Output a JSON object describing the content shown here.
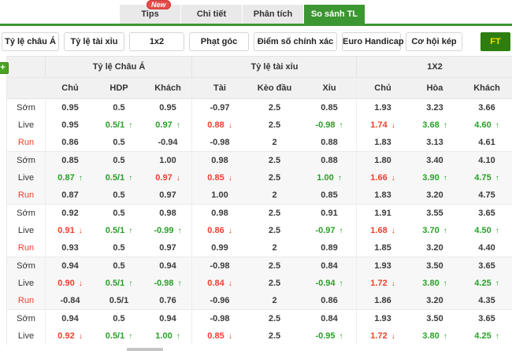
{
  "tabs": [
    {
      "label": "Tips",
      "badge": "New",
      "active": false
    },
    {
      "label": "Chi tiết",
      "active": false
    },
    {
      "label": "Phân tích",
      "active": false
    },
    {
      "label": "So sánh TL",
      "active": true
    }
  ],
  "filters": {
    "buttons": [
      "Tỷ lệ châu Á",
      "Tỷ lệ tài xỉu",
      "1x2",
      "Phạt góc",
      "Điểm số chính xác",
      "Euro Handicap",
      "Cơ hội kép"
    ],
    "ft_label": "FT"
  },
  "table": {
    "groups": [
      {
        "title": "Tỷ lệ Châu Á",
        "columns": [
          "Chủ",
          "HDP",
          "Khách"
        ]
      },
      {
        "title": "Tỷ lệ tài xỉu",
        "columns": [
          "Tài",
          "Kèo đầu",
          "Xỉu"
        ]
      },
      {
        "title": "1X2",
        "columns": [
          "Chủ",
          "Hòa",
          "Khách"
        ]
      }
    ],
    "rows": [
      {
        "label": "Sớm",
        "cells": [
          {
            "v": "0.95"
          },
          {
            "v": "0.5"
          },
          {
            "v": "0.95"
          },
          {
            "v": "-0.97"
          },
          {
            "v": "2.5"
          },
          {
            "v": "0.85"
          },
          {
            "v": "1.93"
          },
          {
            "v": "3.23"
          },
          {
            "v": "3.66"
          }
        ]
      },
      {
        "label": "Live",
        "cells": [
          {
            "v": "0.95"
          },
          {
            "v": "0.5/1",
            "dir": "up"
          },
          {
            "v": "0.97",
            "dir": "up"
          },
          {
            "v": "0.88",
            "dir": "down"
          },
          {
            "v": "2.5"
          },
          {
            "v": "-0.98",
            "dir": "up"
          },
          {
            "v": "1.74",
            "dir": "down"
          },
          {
            "v": "3.68",
            "dir": "up"
          },
          {
            "v": "4.60",
            "dir": "up"
          }
        ]
      },
      {
        "label": "Run",
        "cells": [
          {
            "v": "0.86"
          },
          {
            "v": "0.5"
          },
          {
            "v": "-0.94"
          },
          {
            "v": "-0.98"
          },
          {
            "v": "2"
          },
          {
            "v": "0.88"
          },
          {
            "v": "1.83"
          },
          {
            "v": "3.13"
          },
          {
            "v": "4.61"
          }
        ]
      },
      {
        "label": "Sớm",
        "cells": [
          {
            "v": "0.85"
          },
          {
            "v": "0.5"
          },
          {
            "v": "1.00"
          },
          {
            "v": "0.98"
          },
          {
            "v": "2.5"
          },
          {
            "v": "0.88"
          },
          {
            "v": "1.80"
          },
          {
            "v": "3.40"
          },
          {
            "v": "4.10"
          }
        ]
      },
      {
        "label": "Live",
        "cells": [
          {
            "v": "0.87",
            "dir": "up"
          },
          {
            "v": "0.5/1",
            "dir": "up"
          },
          {
            "v": "0.97",
            "dir": "down"
          },
          {
            "v": "0.85",
            "dir": "down"
          },
          {
            "v": "2.5"
          },
          {
            "v": "1.00",
            "dir": "up"
          },
          {
            "v": "1.66",
            "dir": "down"
          },
          {
            "v": "3.90",
            "dir": "up"
          },
          {
            "v": "4.75",
            "dir": "up"
          }
        ]
      },
      {
        "label": "Run",
        "cells": [
          {
            "v": "0.87"
          },
          {
            "v": "0.5"
          },
          {
            "v": "0.97"
          },
          {
            "v": "1.00"
          },
          {
            "v": "2"
          },
          {
            "v": "0.85"
          },
          {
            "v": "1.83"
          },
          {
            "v": "3.20"
          },
          {
            "v": "4.75"
          }
        ]
      },
      {
        "label": "Sớm",
        "cells": [
          {
            "v": "0.92"
          },
          {
            "v": "0.5"
          },
          {
            "v": "0.98"
          },
          {
            "v": "0.98"
          },
          {
            "v": "2.5"
          },
          {
            "v": "0.91"
          },
          {
            "v": "1.91"
          },
          {
            "v": "3.55"
          },
          {
            "v": "3.65"
          }
        ]
      },
      {
        "label": "Live",
        "cells": [
          {
            "v": "0.91",
            "dir": "down"
          },
          {
            "v": "0.5/1",
            "dir": "up"
          },
          {
            "v": "-0.99",
            "dir": "up"
          },
          {
            "v": "0.86",
            "dir": "down"
          },
          {
            "v": "2.5"
          },
          {
            "v": "-0.97",
            "dir": "up"
          },
          {
            "v": "1.68",
            "dir": "down"
          },
          {
            "v": "3.70",
            "dir": "up"
          },
          {
            "v": "4.50",
            "dir": "up"
          }
        ]
      },
      {
        "label": "Run",
        "cells": [
          {
            "v": "0.93"
          },
          {
            "v": "0.5"
          },
          {
            "v": "0.97"
          },
          {
            "v": "0.99"
          },
          {
            "v": "2"
          },
          {
            "v": "0.89"
          },
          {
            "v": "1.85"
          },
          {
            "v": "3.20"
          },
          {
            "v": "4.40"
          }
        ]
      },
      {
        "label": "Sớm",
        "cells": [
          {
            "v": "0.94"
          },
          {
            "v": "0.5"
          },
          {
            "v": "0.94"
          },
          {
            "v": "-0.98"
          },
          {
            "v": "2.5"
          },
          {
            "v": "0.84"
          },
          {
            "v": "1.93"
          },
          {
            "v": "3.50"
          },
          {
            "v": "3.65"
          }
        ]
      },
      {
        "label": "Live",
        "cells": [
          {
            "v": "0.90",
            "dir": "down"
          },
          {
            "v": "0.5/1",
            "dir": "up"
          },
          {
            "v": "-0.98",
            "dir": "up"
          },
          {
            "v": "0.84",
            "dir": "down"
          },
          {
            "v": "2.5"
          },
          {
            "v": "-0.94",
            "dir": "up"
          },
          {
            "v": "1.72",
            "dir": "down"
          },
          {
            "v": "3.80",
            "dir": "up"
          },
          {
            "v": "4.25",
            "dir": "up"
          }
        ]
      },
      {
        "label": "Run",
        "cells": [
          {
            "v": "-0.84"
          },
          {
            "v": "0.5/1"
          },
          {
            "v": "0.76"
          },
          {
            "v": "-0.96"
          },
          {
            "v": "2"
          },
          {
            "v": "0.86"
          },
          {
            "v": "1.86"
          },
          {
            "v": "3.20"
          },
          {
            "v": "4.35"
          }
        ]
      },
      {
        "label": "Sớm",
        "cells": [
          {
            "v": "0.94"
          },
          {
            "v": "0.5"
          },
          {
            "v": "0.94"
          },
          {
            "v": "-0.98"
          },
          {
            "v": "2.5"
          },
          {
            "v": "0.84"
          },
          {
            "v": "1.93"
          },
          {
            "v": "3.50"
          },
          {
            "v": "3.65"
          }
        ]
      },
      {
        "label": "Live",
        "cells": [
          {
            "v": "0.92",
            "dir": "down"
          },
          {
            "v": "0.5/1",
            "dir": "up"
          },
          {
            "v": "1.00",
            "dir": "up"
          },
          {
            "v": "0.85",
            "dir": "down"
          },
          {
            "v": "2.5"
          },
          {
            "v": "-0.95",
            "dir": "up"
          },
          {
            "v": "1.72",
            "dir": "down"
          },
          {
            "v": "3.80",
            "dir": "up"
          },
          {
            "v": "4.25",
            "dir": "up"
          }
        ]
      }
    ]
  },
  "colors": {
    "accent_green": "#3c9631",
    "ft_button_green": "#2d7e0e",
    "ft_text_yellow": "#f2e300",
    "up_green": "#27a127",
    "down_red": "#ee3f2d",
    "badge_red": "#e84b4b",
    "run_label_red": "#e8402e"
  }
}
